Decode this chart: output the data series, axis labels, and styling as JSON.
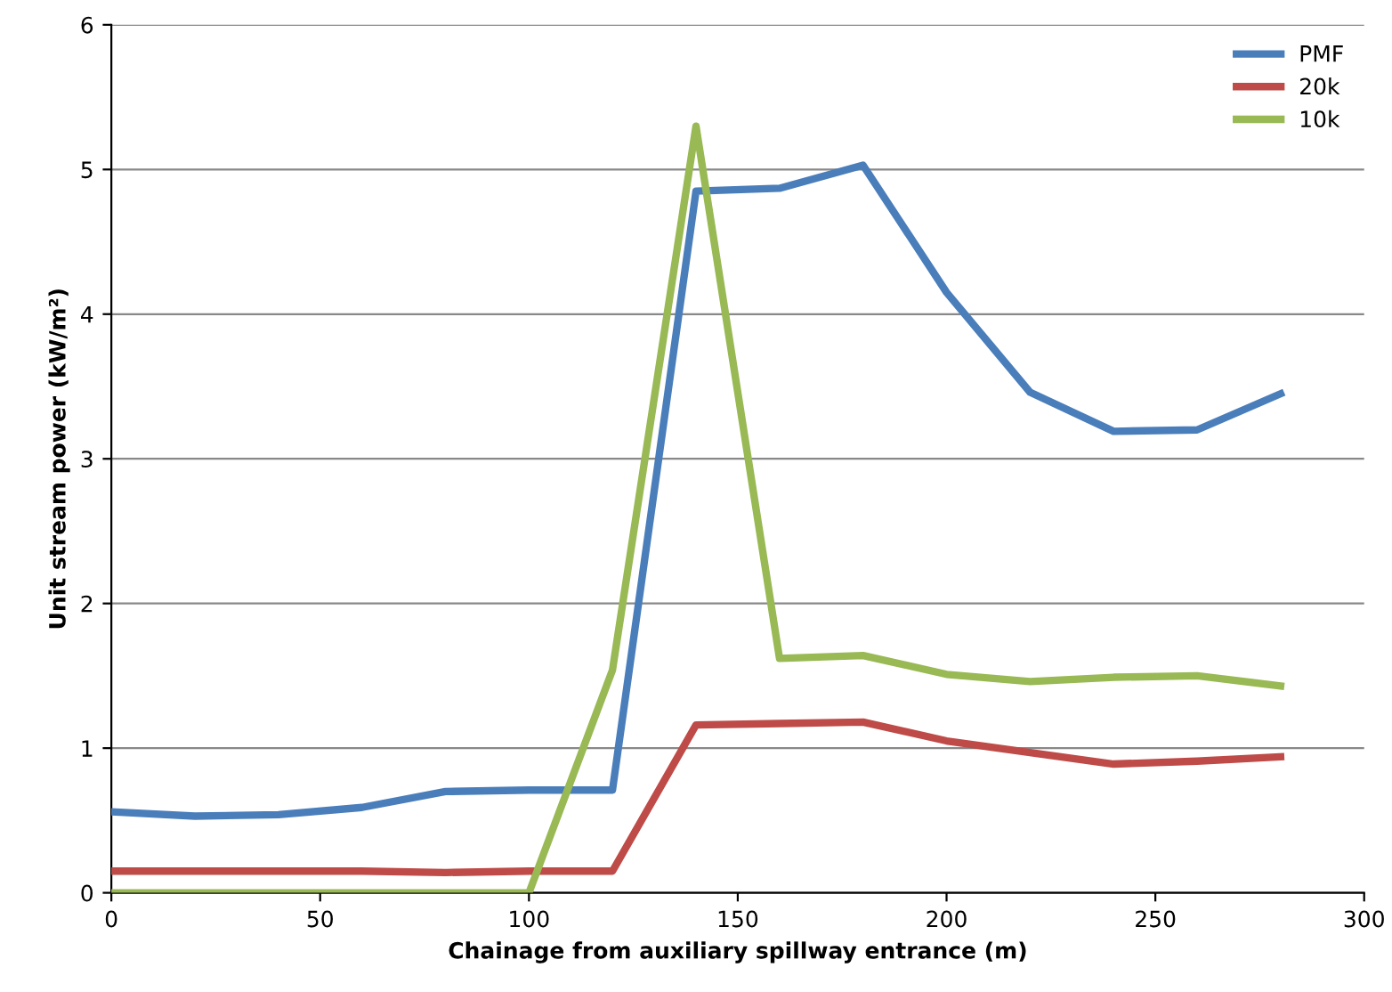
{
  "chart_data": {
    "type": "line",
    "xlabel": "Chainage from auxiliary spillway entrance (m)",
    "ylabel": "Unit stream power (kW/m²)",
    "x": [
      0,
      20,
      40,
      60,
      80,
      100,
      120,
      140,
      160,
      180,
      200,
      220,
      240,
      260,
      280
    ],
    "series": [
      {
        "name": "PMF",
        "color": "#4a7ebb",
        "values": [
          0.56,
          0.53,
          0.54,
          0.59,
          0.7,
          0.71,
          0.71,
          4.85,
          4.87,
          5.03,
          4.15,
          3.46,
          3.19,
          3.2,
          3.45
        ]
      },
      {
        "name": "20k",
        "color": "#be4b48",
        "values": [
          0.15,
          0.15,
          0.15,
          0.15,
          0.14,
          0.15,
          0.15,
          1.16,
          1.17,
          1.18,
          1.05,
          0.97,
          0.89,
          0.91,
          0.94
        ]
      },
      {
        "name": "10k",
        "color": "#98b954",
        "values": [
          0,
          0,
          0,
          0,
          0,
          0,
          1.54,
          5.3,
          1.62,
          1.64,
          1.51,
          1.46,
          1.49,
          1.5,
          1.43
        ]
      }
    ],
    "xlim": [
      0,
      300
    ],
    "xticks": [
      0,
      50,
      100,
      150,
      200,
      250,
      300
    ],
    "ylim": [
      0,
      6
    ],
    "yticks": [
      0,
      1,
      2,
      3,
      4,
      5,
      6
    ],
    "grid": "y",
    "legend": "top right",
    "marker": "none",
    "line_style": "solid"
  }
}
